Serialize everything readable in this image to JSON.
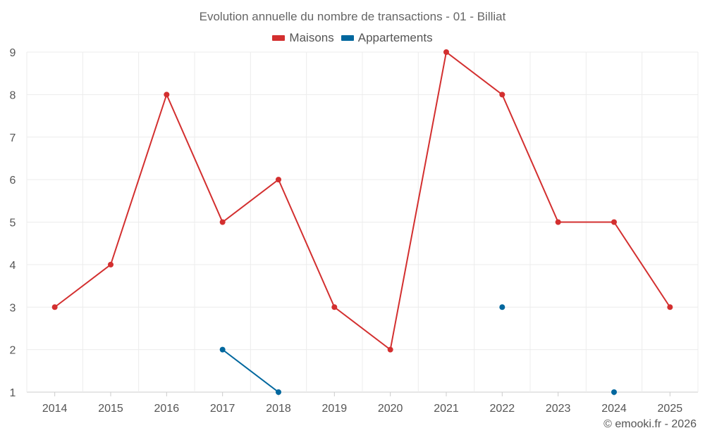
{
  "chart_data": {
    "type": "line",
    "title": "Evolution annuelle du nombre de transactions - 01 - Billiat",
    "categories": [
      "2014",
      "2015",
      "2016",
      "2017",
      "2018",
      "2019",
      "2020",
      "2021",
      "2022",
      "2023",
      "2024",
      "2025"
    ],
    "ylim": [
      1,
      9
    ],
    "yticks": [
      1,
      2,
      3,
      4,
      5,
      6,
      7,
      8,
      9
    ],
    "grid": true,
    "legend_position": "top-center",
    "series": [
      {
        "name": "Maisons",
        "color": "#d32f2f",
        "values": [
          3,
          4,
          8,
          5,
          6,
          3,
          2,
          9,
          8,
          5,
          5,
          3
        ]
      },
      {
        "name": "Appartements",
        "color": "#01679e",
        "values": [
          null,
          null,
          null,
          2,
          1,
          null,
          null,
          null,
          3,
          null,
          1,
          null
        ]
      }
    ]
  },
  "credit": "© emooki.fr - 2026"
}
